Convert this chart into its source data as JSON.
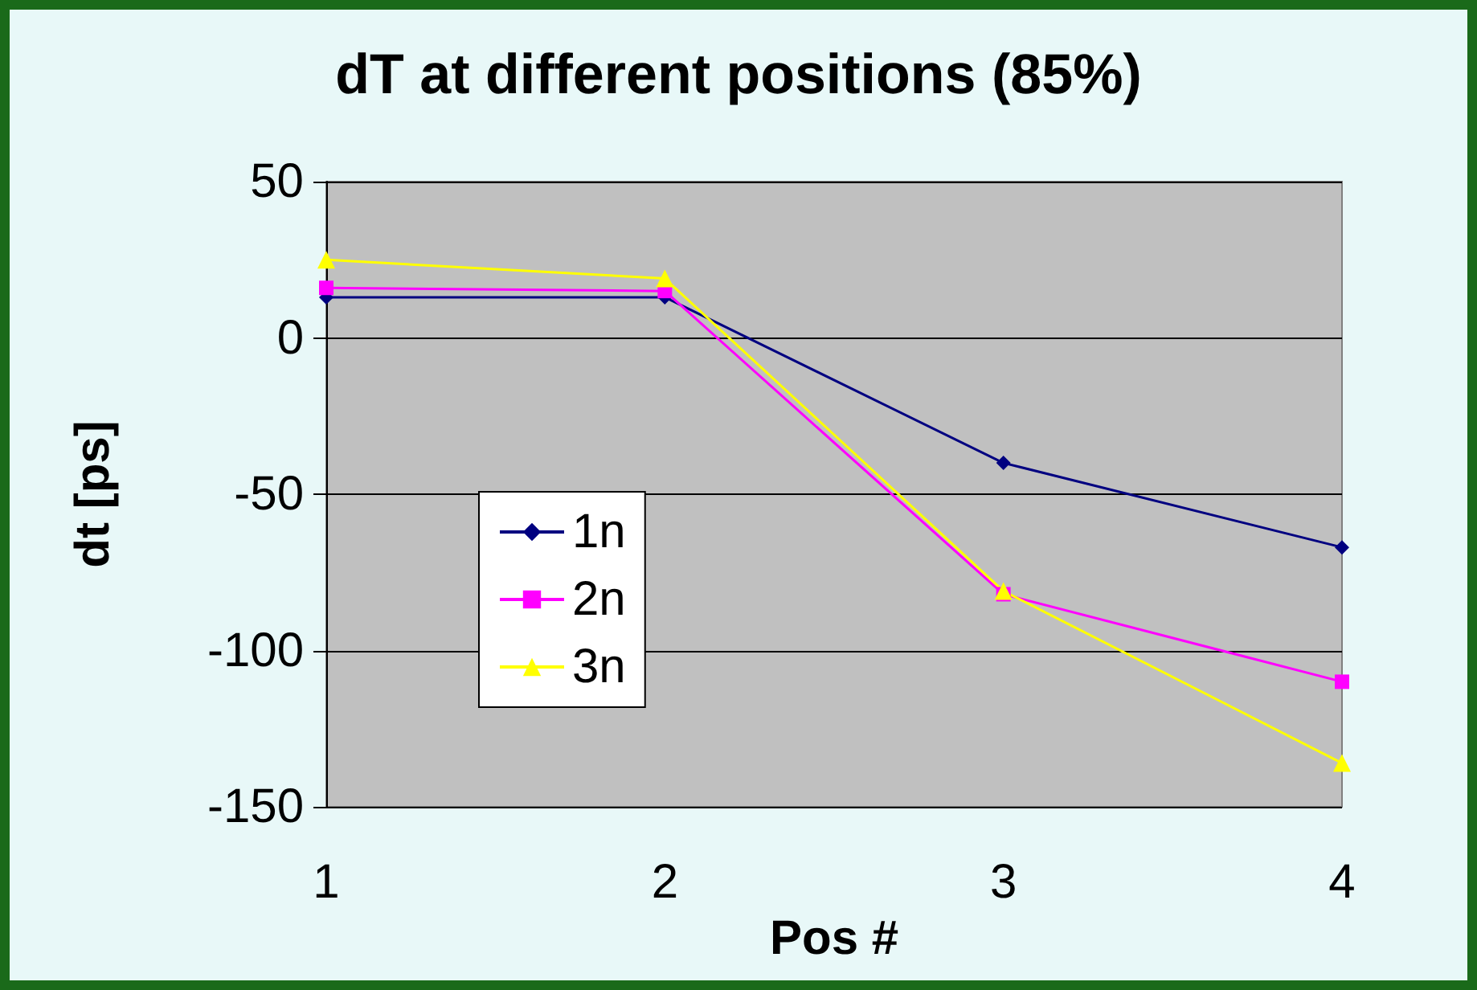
{
  "chart_data": {
    "type": "line",
    "title": "dT at different positions (85%)",
    "xlabel": "Pos #",
    "ylabel": "dt [ps]",
    "categories": [
      "1",
      "2",
      "3",
      "4"
    ],
    "series": [
      {
        "name": "1n",
        "color": "#000080",
        "marker": "diamond",
        "values": [
          13,
          13,
          -40,
          -67
        ]
      },
      {
        "name": "2n",
        "color": "#ff00ff",
        "marker": "square",
        "values": [
          16,
          15,
          -82,
          -110
        ]
      },
      {
        "name": "3n",
        "color": "#ffff00",
        "marker": "triangle",
        "values": [
          25,
          19,
          -81,
          -136
        ]
      }
    ],
    "ylim": [
      -150,
      50
    ],
    "yticks": [
      -150,
      -100,
      -50,
      0,
      50
    ],
    "grid": "y",
    "legend": "left"
  }
}
